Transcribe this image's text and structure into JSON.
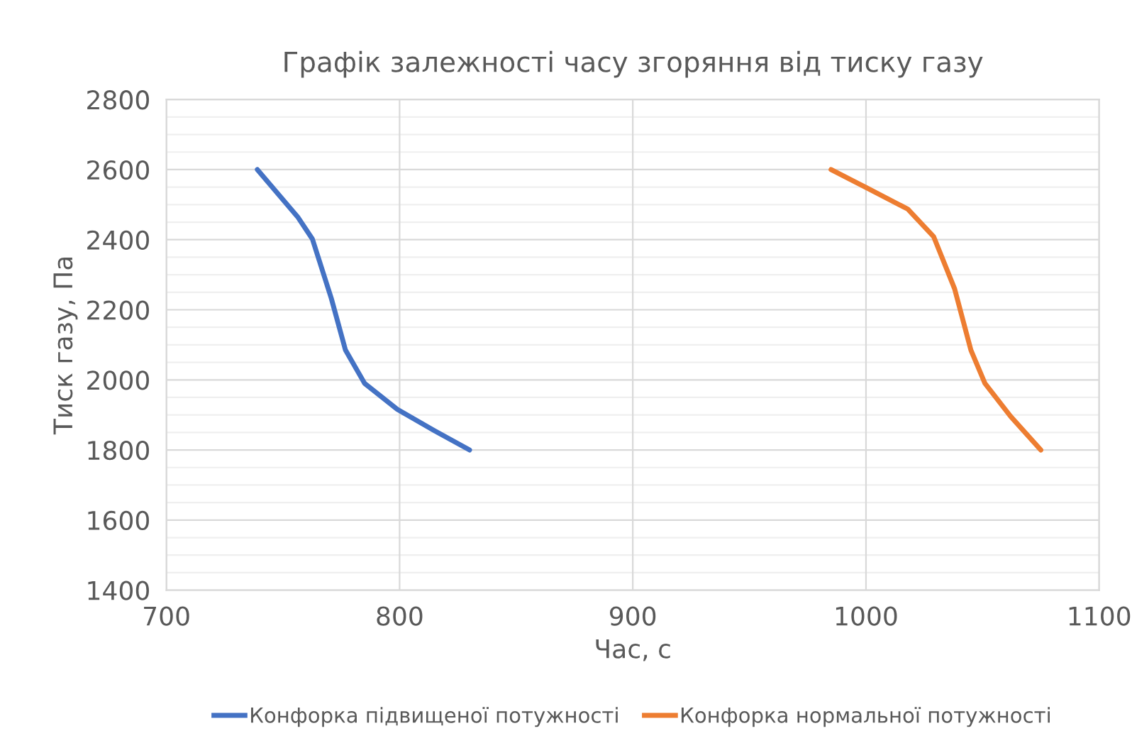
{
  "chart_data": {
    "type": "line",
    "title": "Графік залежності часу згоряння від тиску газу",
    "xlabel": "Час, с",
    "ylabel": "Тиск газу, Па",
    "xlim": [
      700,
      1100
    ],
    "xticks": [
      700,
      800,
      900,
      1000,
      1100
    ],
    "ylim": [
      1400,
      2800
    ],
    "yticks": [
      1400,
      1600,
      1800,
      2000,
      2200,
      2400,
      2600,
      2800
    ],
    "grid": true,
    "legend": "bottom",
    "marker": "none",
    "line_style": "solid",
    "series": [
      {
        "name": "Конфорка підвищеної потужності",
        "color": "#4472c4",
        "x": [
          739,
          756.5,
          762.6,
          770.7,
          776.8,
          785,
          799,
          815,
          830
        ],
        "values": [
          2600,
          2463,
          2402,
          2233,
          2085,
          1990,
          1916,
          1855,
          1800
        ]
      },
      {
        "name": "Конфорка нормальної потужності",
        "color": "#ed7d31",
        "x": [
          985,
          999.7,
          1018,
          1029,
          1038,
          1045,
          1051,
          1062,
          1075
        ],
        "values": [
          2600,
          2550,
          2487,
          2409,
          2260,
          2085,
          1990,
          1896,
          1800
        ]
      }
    ]
  }
}
